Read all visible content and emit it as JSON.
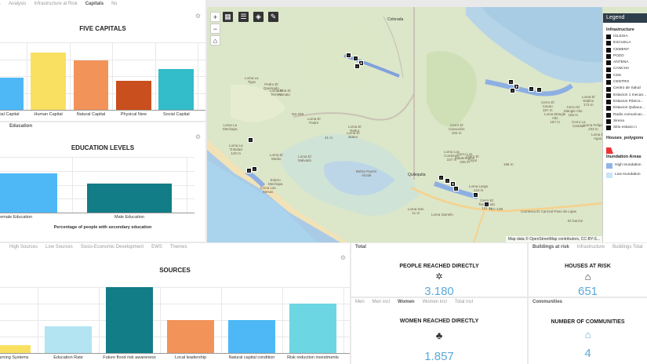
{
  "capitals_panel": {
    "tabs": [
      "...",
      "Analysis",
      "Infrastructure at Risk",
      "Capitals",
      "Ns"
    ],
    "active_tab": 3,
    "title": "FIVE CAPITALS",
    "chart_data": {
      "type": "bar",
      "title": "FIVE CAPITALS",
      "categories": [
        "...ncial Capital",
        "Human Capital",
        "Natural Capital",
        "Physical New",
        "Social Capital"
      ],
      "values": [
        0.52,
        0.93,
        0.8,
        0.47,
        0.66
      ],
      "colors": [
        "#4db8f5",
        "#f9e060",
        "#f2935a",
        "#c94f1e",
        "#33bcc9"
      ],
      "ylim": [
        0,
        1.1
      ]
    }
  },
  "education_panel": {
    "tabs": [
      "Education"
    ],
    "title": "EDUCATION LEVELS",
    "caption": "Percentage of people with secondary education",
    "chart_data": {
      "type": "bar",
      "title": "EDUCATION LEVELS",
      "categories": [
        "Female Education",
        "Male Education"
      ],
      "values": [
        0.7,
        0.52
      ],
      "colors": [
        "#4db8f5",
        "#127c87"
      ],
      "ylim": [
        0,
        1
      ]
    }
  },
  "sources_panel": {
    "tabs": [
      "High Sources",
      "Low Sources",
      "Socio-Economic Development",
      "EWS",
      "Themes"
    ],
    "title": "SOURCES",
    "chart_data": {
      "type": "bar",
      "title": "SOURCES",
      "categories": [
        "...rly Warning Systems",
        "Education Rate",
        "Future flood risk awareness",
        "Local leadership",
        "Natural capital condition",
        "Risk reduction investments"
      ],
      "values": [
        0.12,
        0.4,
        1.0,
        0.5,
        0.5,
        0.75
      ],
      "colors": [
        "#f9e060",
        "#b2e4f2",
        "#127c87",
        "#f2935a",
        "#4db8f5",
        "#6dd6e3"
      ],
      "ylim": [
        0,
        1
      ]
    }
  },
  "map": {
    "zoom_in": "+",
    "zoom_out": "−",
    "attribution": "Map data © OpenStreetMap contributors, CC-BY-S...",
    "labels": [
      {
        "t": "Colorada"
      },
      {
        "t": "Loma La\nTigra"
      },
      {
        "t": "Pedro El\nQuemado"
      },
      {
        "t": "Loma El\nYamato"
      },
      {
        "t": "Loma El\nTerrero"
      },
      {
        "t": "NS-265"
      },
      {
        "t": "Loma La\nMechapa"
      },
      {
        "t": "Loma El\nPadre"
      },
      {
        "t": "Loma El\nBateo"
      },
      {
        "t": "Loma El\nRetiro"
      },
      {
        "t": "Loma La\nTrinidad\n120 m"
      },
      {
        "t": "Loma El\nMedio"
      },
      {
        "t": "Loma El\nMalvado"
      },
      {
        "t": "Cerro El\nCaracolón\n204 m"
      },
      {
        "t": "Loma Los\nCordones\n107 m"
      },
      {
        "t": "Cerro Los\nMadereados\n208 m"
      },
      {
        "t": "Cerro El\nCoyul"
      },
      {
        "t": "Quilequita"
      },
      {
        "t": "Loma Larga\n124 m"
      },
      {
        "t": "Cerro El\nTamarindo\n121 m"
      },
      {
        "t": "Loma Samelo"
      },
      {
        "t": "Loma San\n11 m"
      },
      {
        "t": "Bahía Puerto\nAlcalá"
      },
      {
        "t": "Cerro El\nMangle Alto\n156 m"
      },
      {
        "t": "Loma Mangle\nAlto\n157 m"
      },
      {
        "t": "Cerro El\nCacao\n157 m"
      },
      {
        "t": "Loma El\nSabino\n173 m"
      },
      {
        "t": "Cerro La\nCaridad"
      },
      {
        "t": "Loma Felipa\n233 m"
      },
      {
        "t": "Loma El\nAgua"
      },
      {
        "t": "NIC-12B"
      },
      {
        "t": "El Garrón"
      },
      {
        "t": "Carretera El Carrizal-Paso de Lajas"
      },
      {
        "t": "Loma Las\nMesas"
      },
      {
        "t": "Estero\nMechapa"
      },
      {
        "t": "41 m"
      },
      {
        "t": "186 m"
      }
    ],
    "legend": {
      "title": "Legend",
      "infra_title": "Infrastructure",
      "infra": [
        "IGLESIA",
        "ESCUELA",
        "CEMENT",
        "POZO",
        "ANTENA",
        "CANCHA",
        "CDS",
        "CENTRO",
        "Centro de Salud",
        "Estacion 1 mecan...",
        "Estacion Pánico...",
        "Estacion Quilaca...",
        "Radio comunicac...",
        "Sirena",
        "Sitio estacio n"
      ],
      "houses_title": "Houses_polygons",
      "inundation_title": "Inundation Areas",
      "inundation": [
        "High Inundation",
        "Low Inundation"
      ],
      "high_color": "#8fb4e8",
      "low_color": "#c8e4f7",
      "house_color": "#e33"
    }
  },
  "people_panel": {
    "tabs": [
      "Total"
    ],
    "title": "PEOPLE REACHED DIRECTLY",
    "icon": "network-people-icon",
    "value": "3.180"
  },
  "houses_panel": {
    "tabs": [
      "Buildings at risk",
      "Infrastructure",
      "Buildings Total"
    ],
    "title": "HOUSES AT RISK",
    "icon": "flooded-house-icon",
    "value": "651"
  },
  "women_panel": {
    "tabs": [
      "Men",
      "Men incl",
      "Women",
      "Women incl",
      "Total incl"
    ],
    "active_tab": 2,
    "title": "WOMEN REACHED DIRECTLY",
    "icon": "women-group-icon",
    "value": "1.857"
  },
  "communities_panel": {
    "tabs": [
      "Communities"
    ],
    "title": "NUMBER OF COMMUNITIES",
    "icon": "house-icon",
    "value": "4"
  },
  "colors": {
    "accent": "#5aa9d9"
  }
}
